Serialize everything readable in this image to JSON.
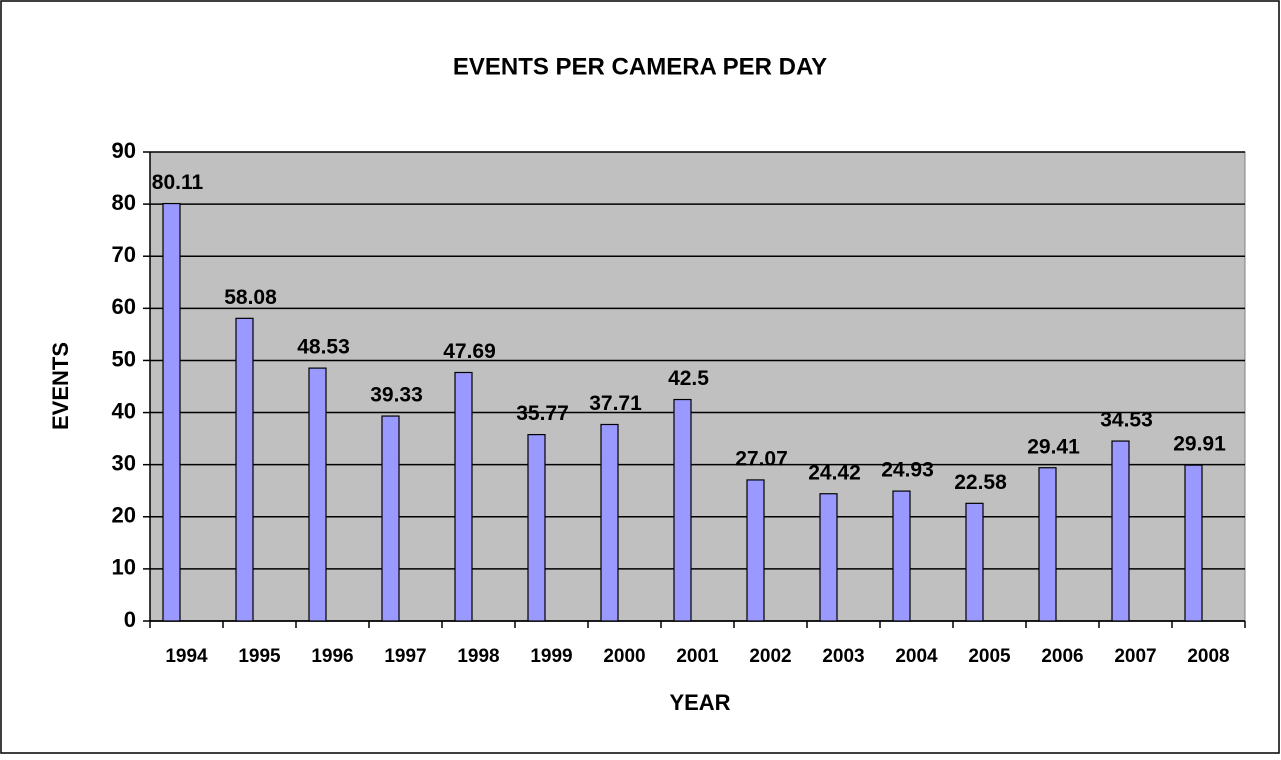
{
  "chart_data": {
    "type": "bar",
    "title": "EVENTS PER CAMERA PER DAY",
    "x_label": "YEAR",
    "y_label": "EVENTS",
    "categories": [
      "1994",
      "1995",
      "1996",
      "1997",
      "1998",
      "1999",
      "2000",
      "2001",
      "2002",
      "2003",
      "2004",
      "2005",
      "2006",
      "2007",
      "2008"
    ],
    "values": [
      80.11,
      58.08,
      48.53,
      39.33,
      47.69,
      35.77,
      37.71,
      42.5,
      27.07,
      24.42,
      24.93,
      22.58,
      29.41,
      34.53,
      29.91
    ],
    "color": "#9999ff",
    "ylim": [
      0,
      90
    ],
    "yticks": [
      0,
      10,
      20,
      30,
      40,
      50,
      60,
      70,
      80,
      90
    ],
    "grid": true
  }
}
